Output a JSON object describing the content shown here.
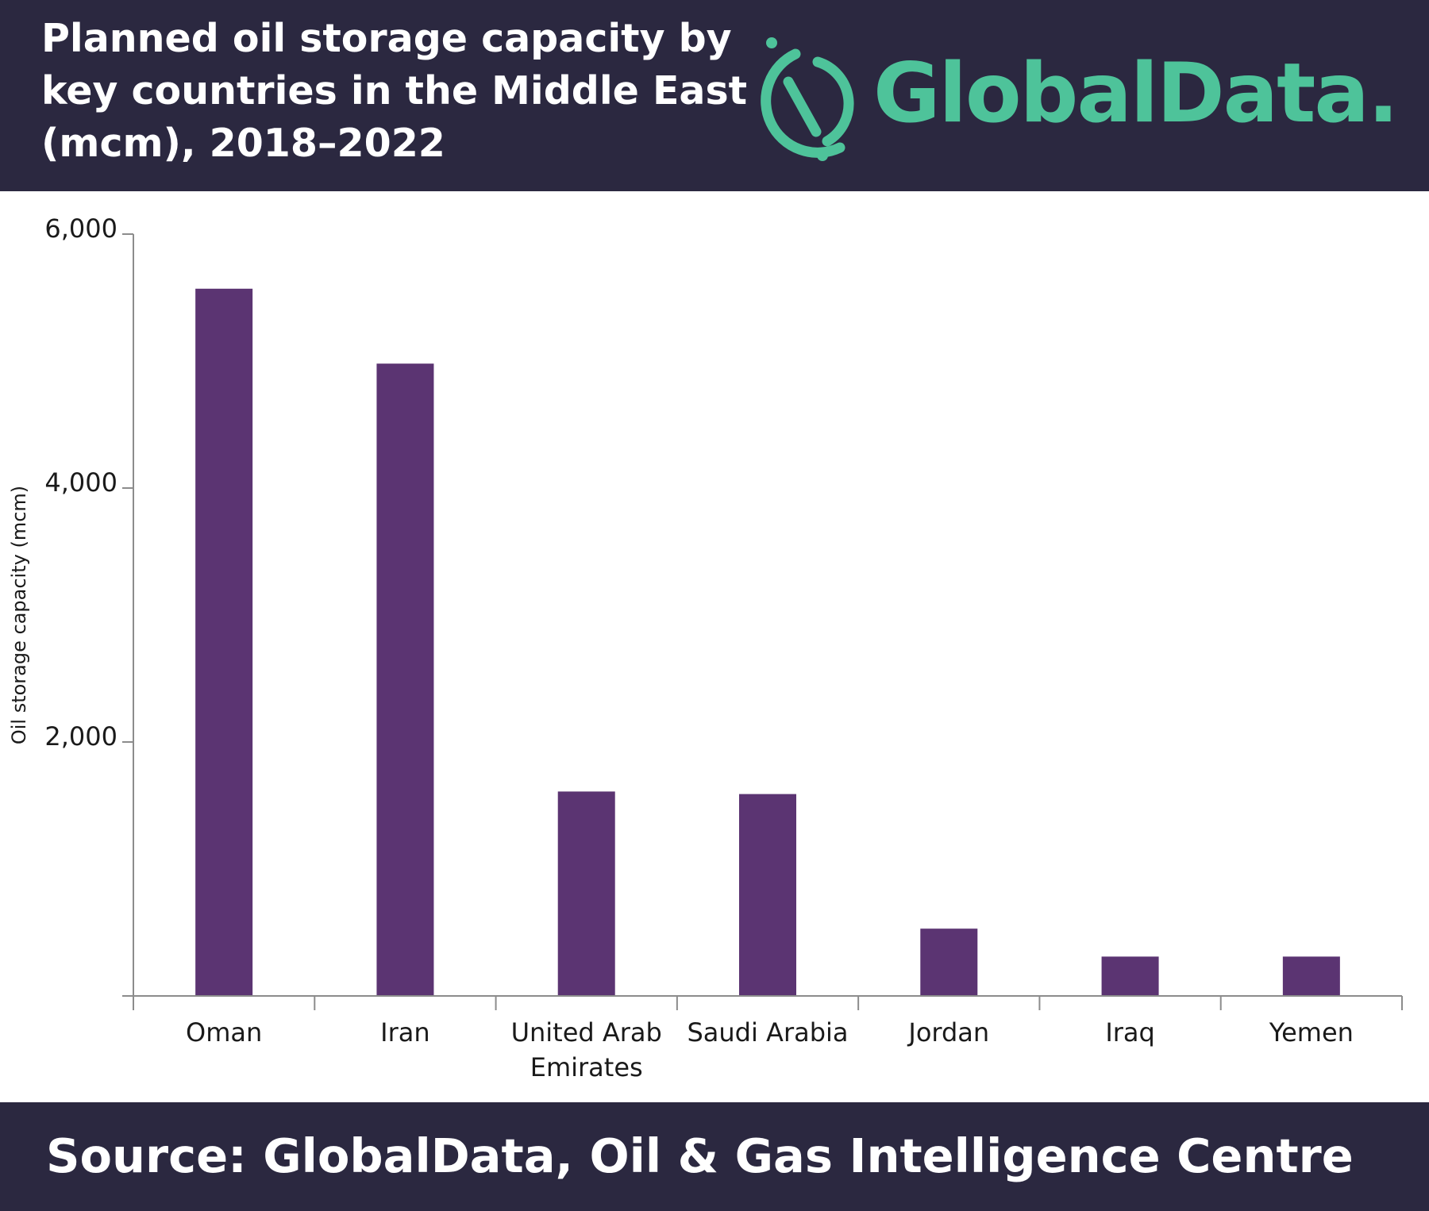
{
  "header": {
    "title": "Planned oil storage capacity by\nkey countries in the Middle East\n(mcm), 2018–2022",
    "logo_text": "GlobalData."
  },
  "footer": {
    "source": "Source:  GlobalData, Oil & Gas Intelligence Centre"
  },
  "colors": {
    "header_bg": "#2b2840",
    "bar": "#5b3472",
    "logo": "#4ec39a"
  },
  "chart_data": {
    "type": "bar",
    "title": "Planned oil storage capacity by key countries in the Middle East (mcm), 2018–2022",
    "ylabel": "Oil storage capacity (mcm)",
    "xlabel": "",
    "ylim": [
      0,
      6000
    ],
    "yticks": [
      2000,
      4000,
      6000
    ],
    "ytick_labels": [
      "2,000",
      "4,000",
      "6,000"
    ],
    "categories": [
      "Oman",
      "Iran",
      "United Arab Emirates",
      "Saudi Arabia",
      "Jordan",
      "Iraq",
      "Yemen"
    ],
    "category_labels": [
      [
        "Oman"
      ],
      [
        "Iran"
      ],
      [
        "United Arab",
        "Emirates"
      ],
      [
        "Saudi Arabia"
      ],
      [
        "Jordan"
      ],
      [
        "Iraq"
      ],
      [
        "Yemen"
      ]
    ],
    "values": [
      5570,
      4980,
      1610,
      1590,
      530,
      310,
      310
    ],
    "grid": false,
    "legend": "none"
  }
}
